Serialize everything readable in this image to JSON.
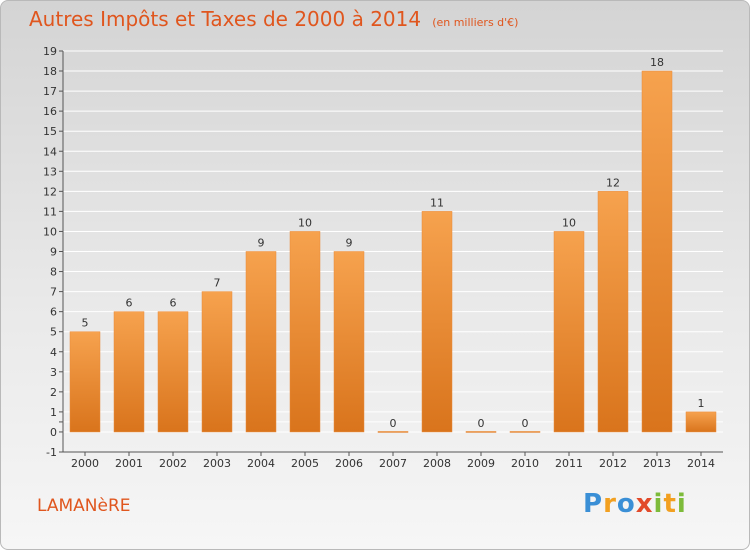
{
  "title": "Autres Impôts et Taxes de 2000 à 2014",
  "subtitle": "(en milliers d'€)",
  "commune": "LAMANèRE",
  "logo": {
    "letters": [
      "P",
      "r",
      "o",
      "x",
      "i",
      "t",
      "i"
    ],
    "colors": [
      "#3a8fd6",
      "#f2a020",
      "#3a8fd6",
      "#e24a2a",
      "#7dbb3a",
      "#f2a020",
      "#7dbb3a"
    ]
  },
  "colors": {
    "bar_light": "#f6a24e",
    "bar_dark": "#d9741c",
    "title": "#e0561e",
    "grid": "#ffffff"
  },
  "chart_data": {
    "type": "bar",
    "categories": [
      "2000",
      "2001",
      "2002",
      "2003",
      "2004",
      "2005",
      "2006",
      "2007",
      "2008",
      "2009",
      "2010",
      "2011",
      "2012",
      "2013",
      "2014"
    ],
    "values": [
      5,
      6,
      6,
      7,
      9,
      10,
      9,
      0,
      11,
      0,
      0,
      10,
      12,
      18,
      1
    ],
    "ylim": [
      -1,
      19
    ],
    "yticks": [
      "-1",
      "0",
      "",
      "1",
      "2",
      "3",
      "4",
      "5",
      "6",
      "7",
      "8",
      "9",
      "10",
      "11",
      "12",
      "13",
      "14",
      "15",
      "16",
      "17",
      "18",
      "19"
    ],
    "ytick_values": [
      -1,
      0,
      0.5,
      1,
      2,
      3,
      4,
      5,
      6,
      7,
      8,
      9,
      10,
      11,
      12,
      13,
      14,
      15,
      16,
      17,
      18,
      19
    ],
    "grid": true,
    "xlabel": "",
    "ylabel": ""
  }
}
